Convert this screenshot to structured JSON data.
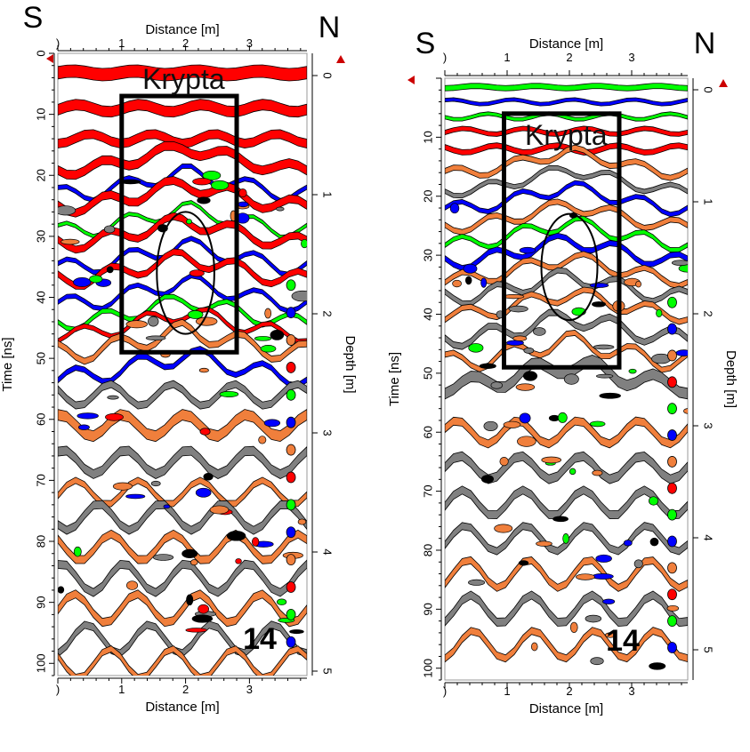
{
  "panels": [
    {
      "id": "left",
      "x_axis_label": "Distance [m]",
      "y_left_label": "Time [ns]",
      "y_right_label": "Depth [m]",
      "x_ticks": [
        0,
        1,
        2,
        3
      ],
      "x_tick_labels": [
        ")",
        "1",
        "2",
        "3"
      ],
      "time_ticks": [
        0,
        10,
        20,
        30,
        40,
        50,
        60,
        70,
        80,
        90,
        100
      ],
      "depth_ticks": [
        0,
        1,
        2,
        3,
        4,
        5
      ],
      "xlim": [
        0,
        3.9
      ],
      "time_lim": [
        0,
        102
      ],
      "direction_left": "S",
      "direction_right": "N",
      "box_label": "Krypta",
      "box": {
        "x0": 1.0,
        "x1": 2.8,
        "t0": 7,
        "t1": 49
      },
      "ellipse": {
        "cx": 2.0,
        "ct": 36,
        "rx": 0.45,
        "rt": 10
      },
      "profile_number": "14"
    },
    {
      "id": "right",
      "x_axis_label": "Distance [m]",
      "y_left_label": "Time [ns]",
      "y_right_label": "Depth [m]",
      "x_ticks": [
        0,
        1,
        2,
        3
      ],
      "x_tick_labels": [
        ")",
        "1",
        "2",
        "3"
      ],
      "time_ticks": [
        10,
        20,
        30,
        40,
        50,
        60,
        70,
        80,
        90,
        100
      ],
      "depth_ticks": [
        0,
        1,
        2,
        3,
        4,
        5
      ],
      "xlim": [
        0,
        3.9
      ],
      "time_lim": [
        0,
        102
      ],
      "direction_left": "S",
      "direction_right": "N",
      "box_label": "Krypta",
      "box": {
        "x0": 0.95,
        "x1": 2.8,
        "t0": 6,
        "t1": 49
      },
      "ellipse": {
        "cx": 2.0,
        "ct": 32,
        "rx": 0.45,
        "rt": 9
      },
      "profile_number": "14"
    }
  ],
  "colors": {
    "red": "#ff0000",
    "blue": "#0000ff",
    "green": "#00ff00",
    "orange": "#f07f3c",
    "gray": "#808080",
    "black": "#000000",
    "marker": "#cc0000"
  }
}
